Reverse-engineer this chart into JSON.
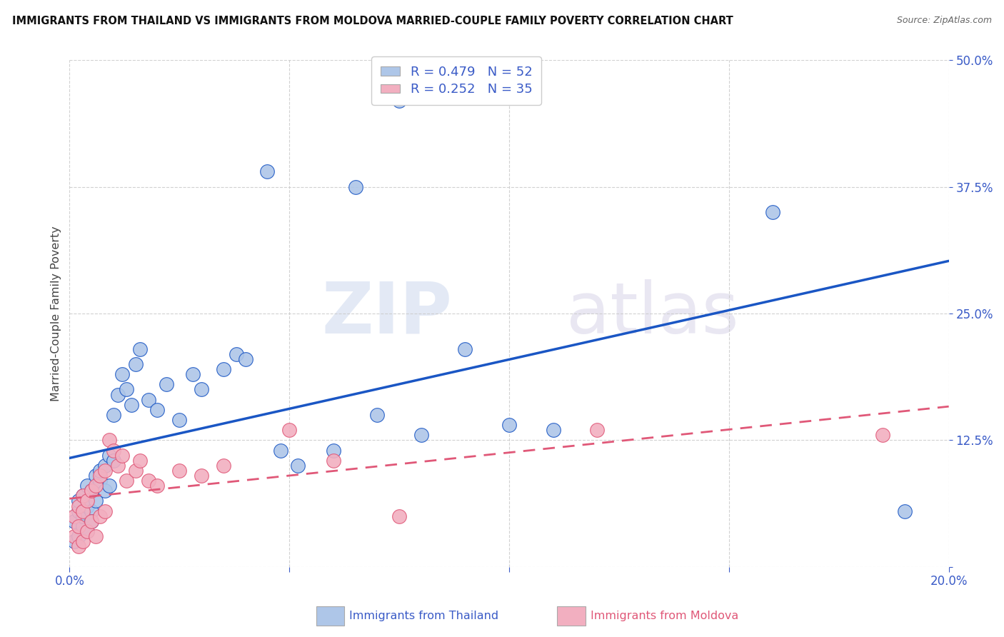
{
  "title": "IMMIGRANTS FROM THAILAND VS IMMIGRANTS FROM MOLDOVA MARRIED-COUPLE FAMILY POVERTY CORRELATION CHART",
  "source": "Source: ZipAtlas.com",
  "ylabel_label": "Married-Couple Family Poverty",
  "legend_label1": "Immigrants from Thailand",
  "legend_label2": "Immigrants from Moldova",
  "R1": 0.479,
  "N1": 52,
  "R2": 0.252,
  "N2": 35,
  "xlim": [
    0.0,
    0.2
  ],
  "ylim": [
    0.0,
    0.5
  ],
  "xticks": [
    0.0,
    0.05,
    0.1,
    0.15,
    0.2
  ],
  "yticks": [
    0.0,
    0.125,
    0.25,
    0.375,
    0.5
  ],
  "color_thailand": "#aec6e8",
  "color_moldova": "#f2afc0",
  "line_color_thailand": "#1a56c4",
  "line_color_moldova": "#e05878",
  "watermark_zip": "ZIP",
  "watermark_atlas": "atlas",
  "thailand_x": [
    0.001,
    0.001,
    0.002,
    0.002,
    0.002,
    0.003,
    0.003,
    0.003,
    0.004,
    0.004,
    0.004,
    0.005,
    0.005,
    0.005,
    0.006,
    0.006,
    0.007,
    0.007,
    0.008,
    0.008,
    0.009,
    0.009,
    0.01,
    0.01,
    0.011,
    0.012,
    0.013,
    0.014,
    0.015,
    0.016,
    0.018,
    0.02,
    0.022,
    0.025,
    0.028,
    0.03,
    0.035,
    0.038,
    0.04,
    0.045,
    0.048,
    0.052,
    0.06,
    0.065,
    0.07,
    0.075,
    0.08,
    0.09,
    0.1,
    0.11,
    0.16,
    0.19
  ],
  "thailand_y": [
    0.045,
    0.025,
    0.055,
    0.03,
    0.065,
    0.04,
    0.07,
    0.05,
    0.06,
    0.035,
    0.08,
    0.055,
    0.075,
    0.045,
    0.09,
    0.065,
    0.085,
    0.095,
    0.075,
    0.1,
    0.11,
    0.08,
    0.105,
    0.15,
    0.17,
    0.19,
    0.175,
    0.16,
    0.2,
    0.215,
    0.165,
    0.155,
    0.18,
    0.145,
    0.19,
    0.175,
    0.195,
    0.21,
    0.205,
    0.39,
    0.115,
    0.1,
    0.115,
    0.375,
    0.15,
    0.46,
    0.13,
    0.215,
    0.14,
    0.135,
    0.35,
    0.055
  ],
  "moldova_x": [
    0.001,
    0.001,
    0.002,
    0.002,
    0.002,
    0.003,
    0.003,
    0.003,
    0.004,
    0.004,
    0.005,
    0.005,
    0.006,
    0.006,
    0.007,
    0.007,
    0.008,
    0.008,
    0.009,
    0.01,
    0.011,
    0.012,
    0.013,
    0.015,
    0.016,
    0.018,
    0.02,
    0.025,
    0.03,
    0.035,
    0.05,
    0.06,
    0.075,
    0.12,
    0.185
  ],
  "moldova_y": [
    0.03,
    0.05,
    0.02,
    0.04,
    0.06,
    0.025,
    0.055,
    0.07,
    0.035,
    0.065,
    0.045,
    0.075,
    0.03,
    0.08,
    0.05,
    0.09,
    0.055,
    0.095,
    0.125,
    0.115,
    0.1,
    0.11,
    0.085,
    0.095,
    0.105,
    0.085,
    0.08,
    0.095,
    0.09,
    0.1,
    0.135,
    0.105,
    0.05,
    0.135,
    0.13
  ]
}
